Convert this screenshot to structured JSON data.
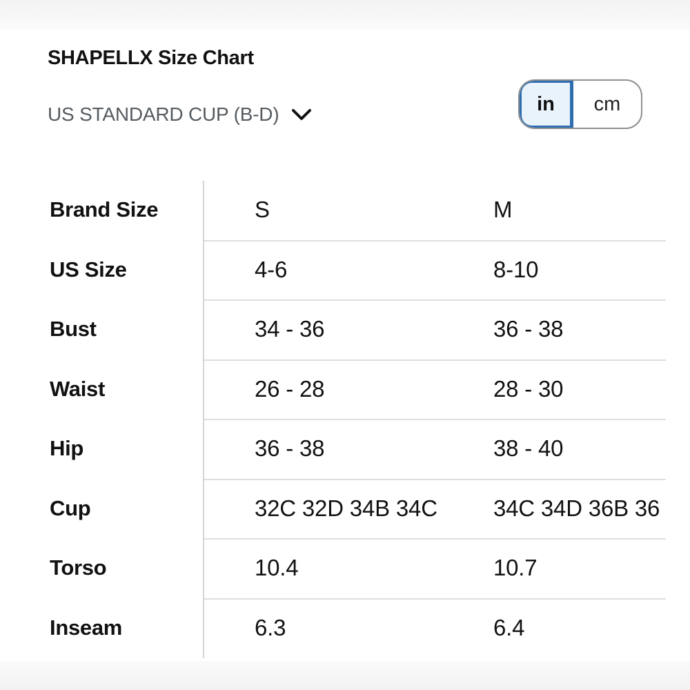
{
  "title": "SHAPELLX Size Chart",
  "region_select": {
    "label": "US STANDARD CUP (B-D)",
    "icon": "chevron-down-icon"
  },
  "unit_toggle": {
    "options": [
      "in",
      "cm"
    ],
    "selected": "in"
  },
  "colors": {
    "accent": "#2e6db0",
    "selected_bg": "#e9f3fc",
    "muted_text": "#555b60",
    "divider": "#dedede"
  },
  "table": {
    "rows": [
      {
        "label": "Brand Size",
        "s": "S",
        "m": "M"
      },
      {
        "label": "US Size",
        "s": "4-6",
        "m": "8-10"
      },
      {
        "label": "Bust",
        "s": "34 - 36",
        "m": "36 - 38"
      },
      {
        "label": "Waist",
        "s": "26 - 28",
        "m": "28 - 30"
      },
      {
        "label": "Hip",
        "s": "36 - 38",
        "m": "38 - 40"
      },
      {
        "label": "Cup",
        "s": "32C 32D 34B 34C",
        "m": "34C 34D 36B 36"
      },
      {
        "label": "Torso",
        "s": "10.4",
        "m": "10.7"
      },
      {
        "label": "Inseam",
        "s": "6.3",
        "m": "6.4"
      }
    ]
  }
}
